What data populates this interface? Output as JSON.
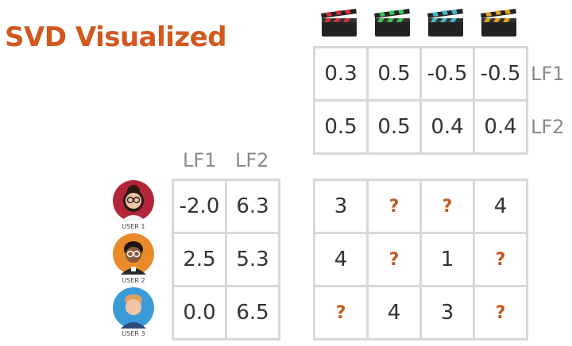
{
  "title": "SVD Visualized",
  "movie_factor_labels": [
    "LF1",
    "LF2"
  ],
  "user_factor_labels": [
    "LF1",
    "LF2"
  ],
  "movies": [
    {
      "icon": "clapperboard-icon",
      "color": "#d32f3a"
    },
    {
      "icon": "clapperboard-icon",
      "color": "#3cc15a"
    },
    {
      "icon": "clapperboard-icon",
      "color": "#3fb8c9"
    },
    {
      "icon": "clapperboard-icon",
      "color": "#e3a21a"
    }
  ],
  "movie_factors": [
    [
      "0.3",
      "0.5",
      "-0.5",
      "-0.5"
    ],
    [
      "0.5",
      "0.5",
      "0.4",
      "0.4"
    ]
  ],
  "users": [
    {
      "label": "USER 1",
      "icon": "user-avatar-icon",
      "bg": "#b3263a"
    },
    {
      "label": "USER 2",
      "icon": "user-avatar-icon",
      "bg": "#e88a2a"
    },
    {
      "label": "USER 3",
      "icon": "user-avatar-icon",
      "bg": "#3a9bd8"
    }
  ],
  "user_factors": [
    [
      "-2.0",
      "6.3"
    ],
    [
      "2.5",
      "5.3"
    ],
    [
      "0.0",
      "6.5"
    ]
  ],
  "ratings": [
    [
      "3",
      "?",
      "?",
      "4"
    ],
    [
      "4",
      "?",
      "1",
      "?"
    ],
    [
      "?",
      "4",
      "3",
      "?"
    ]
  ]
}
